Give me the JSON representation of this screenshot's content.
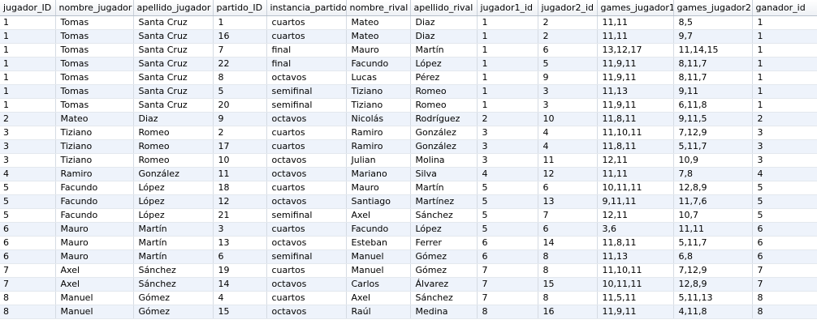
{
  "columns": [
    "jugador_ID",
    "nombre_jugador",
    "apellido_jugador",
    "partido_ID",
    "instancia_partido",
    "nombre_rival",
    "apellido_rival",
    "jugador1_id",
    "jugador2_id",
    "games_jugador1",
    "games_jugador2",
    "ganador_id"
  ],
  "rows": [
    [
      "1",
      "Tomas",
      "Santa Cruz",
      "1",
      "cuartos",
      "Mateo",
      "Diaz",
      "1",
      "2",
      "11,11",
      "8,5",
      "1"
    ],
    [
      "1",
      "Tomas",
      "Santa Cruz",
      "16",
      "cuartos",
      "Mateo",
      "Diaz",
      "1",
      "2",
      "11,11",
      "9,7",
      "1"
    ],
    [
      "1",
      "Tomas",
      "Santa Cruz",
      "7",
      "final",
      "Mauro",
      "Martín",
      "1",
      "6",
      "13,12,17",
      "11,14,15",
      "1"
    ],
    [
      "1",
      "Tomas",
      "Santa Cruz",
      "22",
      "final",
      "Facundo",
      "López",
      "1",
      "5",
      "11,9,11",
      "8,11,7",
      "1"
    ],
    [
      "1",
      "Tomas",
      "Santa Cruz",
      "8",
      "octavos",
      "Lucas",
      "Pérez",
      "1",
      "9",
      "11,9,11",
      "8,11,7",
      "1"
    ],
    [
      "1",
      "Tomas",
      "Santa Cruz",
      "5",
      "semifinal",
      "Tiziano",
      "Romeo",
      "1",
      "3",
      "11,13",
      "9,11",
      "1"
    ],
    [
      "1",
      "Tomas",
      "Santa Cruz",
      "20",
      "semifinal",
      "Tiziano",
      "Romeo",
      "1",
      "3",
      "11,9,11",
      "6,11,8",
      "1"
    ],
    [
      "2",
      "Mateo",
      "Diaz",
      "9",
      "octavos",
      "Nicolás",
      "Rodríguez",
      "2",
      "10",
      "11,8,11",
      "9,11,5",
      "2"
    ],
    [
      "3",
      "Tiziano",
      "Romeo",
      "2",
      "cuartos",
      "Ramiro",
      "González",
      "3",
      "4",
      "11,10,11",
      "7,12,9",
      "3"
    ],
    [
      "3",
      "Tiziano",
      "Romeo",
      "17",
      "cuartos",
      "Ramiro",
      "González",
      "3",
      "4",
      "11,8,11",
      "5,11,7",
      "3"
    ],
    [
      "3",
      "Tiziano",
      "Romeo",
      "10",
      "octavos",
      "Julian",
      "Molina",
      "3",
      "11",
      "12,11",
      "10,9",
      "3"
    ],
    [
      "4",
      "Ramiro",
      "González",
      "11",
      "octavos",
      "Mariano",
      "Silva",
      "4",
      "12",
      "11,11",
      "7,8",
      "4"
    ],
    [
      "5",
      "Facundo",
      "López",
      "18",
      "cuartos",
      "Mauro",
      "Martín",
      "5",
      "6",
      "10,11,11",
      "12,8,9",
      "5"
    ],
    [
      "5",
      "Facundo",
      "López",
      "12",
      "octavos",
      "Santiago",
      "Martínez",
      "5",
      "13",
      "9,11,11",
      "11,7,6",
      "5"
    ],
    [
      "5",
      "Facundo",
      "López",
      "21",
      "semifinal",
      "Axel",
      "Sánchez",
      "5",
      "7",
      "12,11",
      "10,7",
      "5"
    ],
    [
      "6",
      "Mauro",
      "Martín",
      "3",
      "cuartos",
      "Facundo",
      "López",
      "5",
      "6",
      "3,6",
      "11,11",
      "6"
    ],
    [
      "6",
      "Mauro",
      "Martín",
      "13",
      "octavos",
      "Esteban",
      "Ferrer",
      "6",
      "14",
      "11,8,11",
      "5,11,7",
      "6"
    ],
    [
      "6",
      "Mauro",
      "Martín",
      "6",
      "semifinal",
      "Manuel",
      "Gómez",
      "6",
      "8",
      "11,13",
      "6,8",
      "6"
    ],
    [
      "7",
      "Axel",
      "Sánchez",
      "19",
      "cuartos",
      "Manuel",
      "Gómez",
      "7",
      "8",
      "11,10,11",
      "7,12,9",
      "7"
    ],
    [
      "7",
      "Axel",
      "Sánchez",
      "14",
      "octavos",
      "Carlos",
      "Álvarez",
      "7",
      "15",
      "10,11,11",
      "12,8,9",
      "7"
    ],
    [
      "8",
      "Manuel",
      "Gómez",
      "4",
      "cuartos",
      "Axel",
      "Sánchez",
      "7",
      "8",
      "11,5,11",
      "5,11,13",
      "8"
    ],
    [
      "8",
      "Manuel",
      "Gómez",
      "15",
      "octavos",
      "Raúl",
      "Medina",
      "8",
      "16",
      "11,9,11",
      "4,11,8",
      "8"
    ]
  ]
}
